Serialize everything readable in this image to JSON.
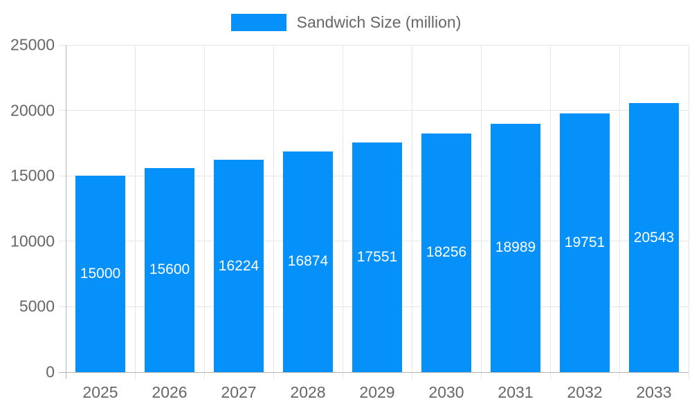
{
  "legend": {
    "position": "top"
  },
  "chart_data": {
    "type": "bar",
    "title": "Sandwich Size (million)",
    "series_name": "Sandwich Size (million)",
    "categories": [
      "2025",
      "2026",
      "2027",
      "2028",
      "2029",
      "2030",
      "2031",
      "2032",
      "2033"
    ],
    "values": [
      15000,
      15600,
      16224,
      16874,
      17551,
      18256,
      18989,
      19751,
      20543
    ],
    "xlabel": "",
    "ylabel": "",
    "ylim": [
      0,
      25000
    ],
    "yticks": [
      0,
      5000,
      10000,
      15000,
      20000,
      25000
    ],
    "grid": true,
    "legend_position": "top",
    "bar_color": "#0590fa",
    "value_label_color": "#ffffff",
    "tick_label_color": "#666666",
    "grid_color": "#e6e6e6",
    "axis_color": "#b3b3b3",
    "background_color": "#ffffff"
  }
}
